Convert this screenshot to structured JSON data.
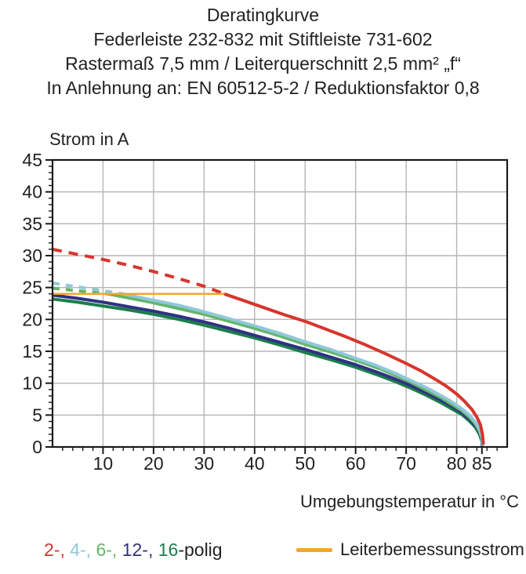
{
  "title": {
    "line1": "Deratingkurve",
    "line2": "Federleiste 232-832 mit Stiftleiste 731-602",
    "line3": "Rastermaß 7,5 mm / Leiterquerschnitt 2,5 mm² „f“",
    "line4": "In Anlehnung an: EN 60512-5-2 / Reduktionsfaktor 0,8"
  },
  "legend": {
    "poles": [
      {
        "label": "2-",
        "color": "#d7352c"
      },
      {
        "label": "4-",
        "color": "#8fc8da"
      },
      {
        "label": "6-",
        "color": "#63b669"
      },
      {
        "label": "12-",
        "color": "#2f3282"
      },
      {
        "label": "16",
        "color": "#1a7f49"
      }
    ],
    "separator": ", ",
    "poles_suffix": "-polig",
    "suffix_color": "#231f20",
    "rated_label": "Leiterbemessungsstrom",
    "rated_color": "#f5a52b"
  },
  "chart_data": {
    "type": "line",
    "title": "Deratingkurve",
    "xlabel": "Umgebungstemperatur in °C",
    "ylabel": "Strom in A",
    "xlim": [
      0,
      90
    ],
    "ylim": [
      0,
      45
    ],
    "x_major_ticks": [
      10,
      20,
      30,
      40,
      50,
      60,
      70,
      80,
      85
    ],
    "x_gridlines": [
      10,
      20,
      30,
      40,
      50,
      60,
      70,
      80
    ],
    "x_minor_step": 2,
    "y_major_ticks": [
      0,
      5,
      10,
      15,
      20,
      25,
      30,
      35,
      40,
      45
    ],
    "y_gridlines": [
      5,
      10,
      15,
      20,
      25,
      30,
      35,
      40
    ],
    "y_minor_step": 1,
    "grid": true,
    "legend_position": "bottom",
    "colors": {
      "grid": "#b5b5b5",
      "axis": "#1a1a1a",
      "text": "#231f20"
    },
    "series": [
      {
        "name": "2-polig",
        "color": "#d7352c",
        "width": 4,
        "z": 5,
        "segments": [
          {
            "style": "dashed",
            "dash": "12 9",
            "points": [
              [
                0,
                31
              ],
              [
                5,
                30.2
              ],
              [
                10,
                29.4
              ],
              [
                15,
                28.5
              ],
              [
                20,
                27.5
              ],
              [
                25,
                26.4
              ],
              [
                30,
                25.2
              ],
              [
                34,
                24
              ]
            ]
          },
          {
            "style": "solid",
            "points": [
              [
                34,
                24
              ],
              [
                38,
                22.9
              ],
              [
                42,
                21.8
              ],
              [
                46,
                20.7
              ],
              [
                50,
                19.7
              ],
              [
                54,
                18.5
              ],
              [
                58,
                17.3
              ],
              [
                62,
                16
              ],
              [
                66,
                14.6
              ],
              [
                70,
                13.1
              ],
              [
                73,
                11.9
              ],
              [
                76,
                10.5
              ],
              [
                78,
                9.5
              ],
              [
                80,
                8.3
              ],
              [
                81.5,
                7.2
              ],
              [
                83,
                5.9
              ],
              [
                84,
                4.7
              ],
              [
                84.7,
                3.5
              ],
              [
                85.1,
                2
              ],
              [
                85.3,
                0.4
              ]
            ]
          }
        ]
      },
      {
        "name": "4-polig",
        "color": "#8fc8da",
        "width": 4,
        "z": 4,
        "segments": [
          {
            "style": "dashed",
            "dash": "9 8",
            "points": [
              [
                0,
                25.7
              ],
              [
                5,
                25.1
              ],
              [
                10,
                24.5
              ],
              [
                14,
                24
              ]
            ]
          },
          {
            "style": "solid",
            "points": [
              [
                14,
                24
              ],
              [
                20,
                23
              ],
              [
                25,
                22.2
              ],
              [
                30,
                21.2
              ],
              [
                35,
                20.1
              ],
              [
                40,
                19
              ],
              [
                45,
                17.8
              ],
              [
                50,
                16.5
              ],
              [
                55,
                15.3
              ],
              [
                60,
                13.9
              ],
              [
                64,
                12.8
              ],
              [
                68,
                11.5
              ],
              [
                71,
                10.4
              ],
              [
                74,
                9.3
              ],
              [
                77,
                8
              ],
              [
                79,
                7.1
              ],
              [
                81,
                6
              ],
              [
                82.5,
                5
              ],
              [
                83.7,
                3.9
              ],
              [
                84.5,
                2.8
              ],
              [
                85,
                1.6
              ],
              [
                85.2,
                0.3
              ]
            ]
          }
        ]
      },
      {
        "name": "6-polig",
        "color": "#63b669",
        "width": 4,
        "z": 3,
        "segments": [
          {
            "style": "dashed",
            "dash": "9 8",
            "points": [
              [
                0,
                24.9
              ],
              [
                6,
                24.4
              ],
              [
                11,
                24
              ]
            ]
          },
          {
            "style": "solid",
            "points": [
              [
                11,
                24
              ],
              [
                20,
                22.6
              ],
              [
                25,
                21.7
              ],
              [
                30,
                20.8
              ],
              [
                35,
                19.7
              ],
              [
                40,
                18.6
              ],
              [
                45,
                17.4
              ],
              [
                50,
                16.1
              ],
              [
                55,
                14.9
              ],
              [
                60,
                13.6
              ],
              [
                65,
                12.2
              ],
              [
                70,
                10.5
              ],
              [
                74,
                8.9
              ],
              [
                77,
                7.7
              ],
              [
                79,
                6.7
              ],
              [
                81,
                5.7
              ],
              [
                82.5,
                4.7
              ],
              [
                83.7,
                3.6
              ],
              [
                84.5,
                2.5
              ],
              [
                85,
                1.3
              ],
              [
                85.15,
                0.3
              ]
            ]
          }
        ]
      },
      {
        "name": "12-polig",
        "color": "#2f3282",
        "width": 4,
        "z": 2,
        "segments": [
          {
            "style": "solid",
            "points": [
              [
                0,
                23.8
              ],
              [
                5,
                23.3
              ],
              [
                10,
                22.7
              ],
              [
                15,
                22
              ],
              [
                20,
                21.3
              ],
              [
                25,
                20.5
              ],
              [
                30,
                19.6
              ],
              [
                35,
                18.6
              ],
              [
                40,
                17.5
              ],
              [
                45,
                16.4
              ],
              [
                50,
                15.3
              ],
              [
                55,
                14.1
              ],
              [
                60,
                12.9
              ],
              [
                64,
                11.8
              ],
              [
                68,
                10.6
              ],
              [
                71,
                9.6
              ],
              [
                74,
                8.5
              ],
              [
                77,
                7.3
              ],
              [
                79,
                6.4
              ],
              [
                81,
                5.4
              ],
              [
                82.5,
                4.4
              ],
              [
                83.7,
                3.3
              ],
              [
                84.5,
                2.3
              ],
              [
                85,
                1.1
              ],
              [
                85.1,
                0.2
              ]
            ]
          }
        ]
      },
      {
        "name": "16-polig",
        "color": "#1a7f49",
        "width": 4,
        "z": 1,
        "segments": [
          {
            "style": "solid",
            "points": [
              [
                0,
                23.2
              ],
              [
                5,
                22.7
              ],
              [
                10,
                22.1
              ],
              [
                15,
                21.5
              ],
              [
                20,
                20.8
              ],
              [
                25,
                20
              ],
              [
                30,
                19.1
              ],
              [
                35,
                18.1
              ],
              [
                40,
                17.1
              ],
              [
                45,
                16
              ],
              [
                50,
                14.8
              ],
              [
                55,
                13.7
              ],
              [
                60,
                12.5
              ],
              [
                64,
                11.4
              ],
              [
                68,
                10.2
              ],
              [
                71,
                9.2
              ],
              [
                74,
                8.1
              ],
              [
                77,
                6.9
              ],
              [
                79,
                6
              ],
              [
                81,
                5.1
              ],
              [
                82.5,
                4.1
              ],
              [
                83.7,
                3.1
              ],
              [
                84.5,
                2
              ],
              [
                85,
                0.9
              ],
              [
                85.05,
                0.2
              ]
            ]
          }
        ]
      },
      {
        "name": "Leiterbemessungsstrom",
        "color": "#f5a52b",
        "width": 2.5,
        "z": 6,
        "segments": [
          {
            "style": "solid",
            "points": [
              [
                0,
                24
              ],
              [
                34,
                24
              ]
            ]
          }
        ]
      }
    ]
  }
}
